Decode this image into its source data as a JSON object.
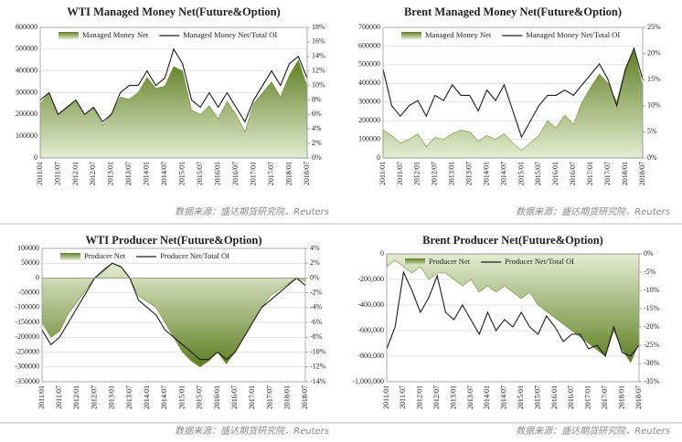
{
  "chart_data": [
    {
      "type": "area-line",
      "title": "WTI Managed Money Net(Future&Option)",
      "source": "数据来源：盛达期货研究院，Reuters",
      "legend": "top",
      "categories": [
        "2011/01",
        null,
        "2011/07",
        null,
        "2012/01",
        null,
        "2012/07",
        null,
        "2013/01",
        null,
        "2013/07",
        null,
        "2014/01",
        null,
        "2014/07",
        null,
        "2015/01",
        null,
        "2015/07",
        null,
        "2016/01",
        null,
        "2016/07",
        null,
        "2017/01",
        null,
        "2017/07",
        null,
        "2018/01",
        null,
        "2018/07"
      ],
      "series": [
        {
          "name": "Managed Money Net",
          "color": "#6f8f2f",
          "values": [
            250000,
            300000,
            200000,
            230000,
            260000,
            200000,
            230000,
            150000,
            200000,
            280000,
            270000,
            300000,
            370000,
            320000,
            330000,
            420000,
            400000,
            220000,
            200000,
            240000,
            180000,
            260000,
            200000,
            120000,
            250000,
            300000,
            350000,
            280000,
            380000,
            450000,
            330000
          ]
        },
        {
          "name": "Managed Money Net/Total OI",
          "color": "#1a1a1a",
          "axis": "y2",
          "values": [
            8,
            9,
            6,
            7,
            8,
            6,
            7,
            5,
            6,
            9,
            10,
            10,
            12,
            10,
            11,
            15,
            13,
            8,
            7,
            9,
            7,
            9,
            7,
            5,
            8,
            10,
            12,
            10,
            13,
            14,
            11
          ]
        }
      ],
      "ylim": [
        0,
        600000
      ],
      "yticks": [
        0,
        100000,
        200000,
        300000,
        400000,
        500000,
        600000
      ],
      "y2lim": [
        0,
        18
      ],
      "y2ticks": [
        {
          "value": 0,
          "label": "0%"
        },
        {
          "value": 2,
          "label": "2%"
        },
        {
          "value": 4,
          "label": "4%"
        },
        {
          "value": 6,
          "label": "6%"
        },
        {
          "value": 8,
          "label": "8%"
        },
        {
          "value": 10,
          "label": "10%"
        },
        {
          "value": 12,
          "label": "12%"
        },
        {
          "value": 14,
          "label": "14%"
        },
        {
          "value": 16,
          "label": "16%"
        },
        {
          "value": 18,
          "label": "18%"
        }
      ],
      "grid": true
    },
    {
      "type": "area-line",
      "title": "Brent Managed Money Net(Future&Option)",
      "source": "数据来源：盛达期货研究院，Reuters",
      "legend": "top",
      "categories": [
        "2011/01",
        null,
        "2011/07",
        null,
        "2012/01",
        null,
        "2012/07",
        null,
        "2013/01",
        null,
        "2013/07",
        null,
        "2014/01",
        null,
        "2014/07",
        null,
        "2015/01",
        null,
        "2015/07",
        null,
        "2016/01",
        null,
        "2016/07",
        null,
        "2017/01",
        null,
        "2017/07",
        null,
        "2018/01",
        null,
        "2018/07"
      ],
      "series": [
        {
          "name": "Managed Money Net",
          "color": "#6f8f2f",
          "values": [
            150000,
            120000,
            80000,
            100000,
            130000,
            60000,
            110000,
            100000,
            130000,
            150000,
            140000,
            90000,
            120000,
            100000,
            130000,
            80000,
            40000,
            80000,
            120000,
            200000,
            160000,
            230000,
            180000,
            300000,
            380000,
            450000,
            400000,
            300000,
            480000,
            580000,
            380000
          ]
        },
        {
          "name": "Managed Money Net/Total OI",
          "color": "#1a1a1a",
          "axis": "y2",
          "values": [
            17,
            10,
            8,
            10,
            11,
            8,
            12,
            11,
            14,
            12,
            12,
            9,
            13,
            11,
            14,
            9,
            4,
            7,
            10,
            12,
            12,
            13,
            12,
            14,
            16,
            18,
            15,
            10,
            17,
            21,
            15
          ]
        }
      ],
      "ylim": [
        0,
        700000
      ],
      "yticks": [
        0,
        100000,
        200000,
        300000,
        400000,
        500000,
        600000,
        700000
      ],
      "y2lim": [
        0,
        25
      ],
      "y2ticks": [
        {
          "value": 0,
          "label": "0%"
        },
        {
          "value": 5,
          "label": "5%"
        },
        {
          "value": 10,
          "label": "10%"
        },
        {
          "value": 15,
          "label": "15%"
        },
        {
          "value": 20,
          "label": "20%"
        },
        {
          "value": 25,
          "label": "25%"
        }
      ],
      "grid": true
    },
    {
      "type": "area-line",
      "title": "WTI Producer Net(Future&Option)",
      "source": "数据来源：盛达期货研究院，Reuters",
      "legend": "top",
      "categories": [
        "2011/01",
        null,
        "2011/07",
        null,
        "2012/01",
        null,
        "2012/07",
        null,
        "2013/01",
        null,
        "2013/07",
        null,
        "2014/01",
        null,
        "2014/07",
        null,
        "2015/01",
        null,
        "2015/07",
        null,
        "2016/01",
        null,
        "2016/07",
        null,
        "2017/01",
        null,
        "2017/07",
        null,
        "2018/01",
        null,
        "2018/07"
      ],
      "series": [
        {
          "name": "Producer Net",
          "color": "#6f8f2f",
          "values": [
            -150000,
            -200000,
            -180000,
            -120000,
            -80000,
            -40000,
            0,
            30000,
            50000,
            40000,
            0,
            -60000,
            -80000,
            -100000,
            -150000,
            -200000,
            -250000,
            -280000,
            -300000,
            -280000,
            -250000,
            -290000,
            -250000,
            -200000,
            -150000,
            -100000,
            -60000,
            -40000,
            -20000,
            0,
            -10000
          ]
        },
        {
          "name": "Producer Net/Total OI",
          "color": "#1a1a1a",
          "axis": "y2",
          "values": [
            -7,
            -9,
            -8,
            -6,
            -4,
            -2,
            0,
            1,
            2,
            1.5,
            0,
            -3,
            -4,
            -5,
            -7,
            -8,
            -9,
            -10,
            -11,
            -11,
            -10,
            -11,
            -10,
            -8,
            -6,
            -4,
            -3,
            -2,
            -1,
            0,
            -1
          ]
        }
      ],
      "ylim": [
        -350000,
        100000
      ],
      "yticks": [
        -350000,
        -300000,
        -250000,
        -200000,
        -150000,
        -100000,
        -50000,
        0,
        50000,
        100000
      ],
      "y2lim": [
        -14,
        4
      ],
      "y2ticks": [
        {
          "value": -14,
          "label": "-14%"
        },
        {
          "value": -12,
          "label": "-12%"
        },
        {
          "value": -10,
          "label": "-10%"
        },
        {
          "value": -8,
          "label": "-8%"
        },
        {
          "value": -6,
          "label": "-6%"
        },
        {
          "value": -4,
          "label": "-4%"
        },
        {
          "value": -2,
          "label": "-2%"
        },
        {
          "value": 0,
          "label": "0%"
        },
        {
          "value": 2,
          "label": "2%"
        },
        {
          "value": 4,
          "label": "4%"
        }
      ],
      "grid": true
    },
    {
      "type": "area-line",
      "title": "Brent Producer Net(Future&Option)",
      "source": "数据来源：盛达期货研究院，Reuters",
      "legend": "top",
      "categories": [
        "2011/01",
        null,
        "2011/07",
        null,
        "2012/01",
        null,
        "2012/07",
        null,
        "2013/01",
        null,
        "2013/07",
        null,
        "2014/01",
        null,
        "2014/07",
        null,
        "2015/01",
        null,
        "2015/07",
        null,
        "2016/01",
        null,
        "2016/07",
        null,
        "2017/01",
        null,
        "2017/07",
        null,
        "2018/01",
        null,
        "2018/07"
      ],
      "series": [
        {
          "name": "Producer Net",
          "color": "#6f8f2f",
          "values": [
            -100000,
            -50000,
            -100000,
            -150000,
            -100000,
            -200000,
            -150000,
            -150000,
            -200000,
            -250000,
            -200000,
            -300000,
            -250000,
            -300000,
            -250000,
            -300000,
            -350000,
            -300000,
            -400000,
            -450000,
            -500000,
            -550000,
            -600000,
            -650000,
            -700000,
            -750000,
            -800000,
            -600000,
            -750000,
            -850000,
            -700000
          ]
        },
        {
          "name": "Producer Net/Total OI",
          "color": "#1a1a1a",
          "axis": "y2",
          "values": [
            -26,
            -20,
            -5,
            -10,
            -16,
            -12,
            -6,
            -16,
            -18,
            -14,
            -18,
            -22,
            -16,
            -21,
            -18,
            -20,
            -16,
            -20,
            -22,
            -17,
            -20,
            -24,
            -22,
            -22,
            -26,
            -25,
            -28,
            -20,
            -27,
            -28,
            -25
          ]
        }
      ],
      "ylim": [
        -1000000,
        0
      ],
      "yticks": [
        {
          "value": -1000000,
          "label": "-1,000,000"
        },
        {
          "value": -800000,
          "label": "-800,000"
        },
        {
          "value": -600000,
          "label": "-600,000"
        },
        {
          "value": -400000,
          "label": "-400,000"
        },
        {
          "value": -200000,
          "label": "-200,000"
        },
        0
      ],
      "y2lim": [
        -35,
        0
      ],
      "y2ticks": [
        {
          "value": -35,
          "label": "-35%"
        },
        {
          "value": -30,
          "label": "-30%"
        },
        {
          "value": -25,
          "label": "-25%"
        },
        {
          "value": -20,
          "label": "-20%"
        },
        {
          "value": -15,
          "label": "-15%"
        },
        {
          "value": -10,
          "label": "-10%"
        },
        {
          "value": -5,
          "label": "-5%"
        },
        {
          "value": 0,
          "label": "0%"
        }
      ],
      "grid": true
    }
  ]
}
